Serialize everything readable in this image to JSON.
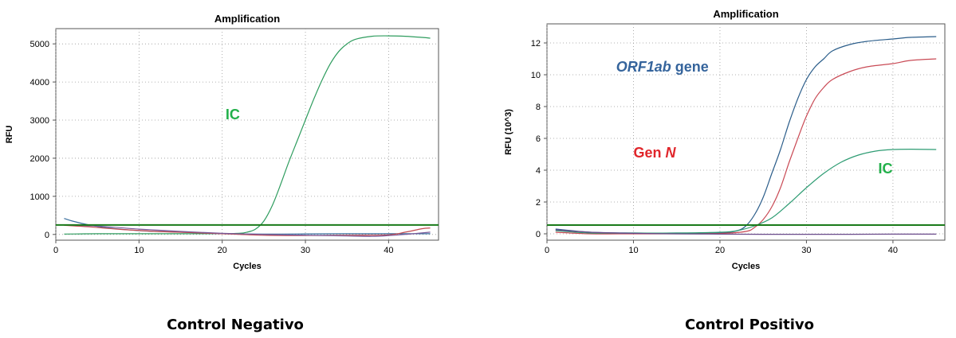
{
  "chart_data": [
    {
      "type": "line",
      "title": "Amplification",
      "xlabel": "Cycles",
      "ylabel": "RFU",
      "xlim": [
        0,
        46
      ],
      "ylim": [
        -150,
        5400
      ],
      "xticks": [
        0,
        10,
        20,
        30,
        40
      ],
      "yticks": [
        0,
        1000,
        2000,
        3000,
        4000,
        5000
      ],
      "threshold": 250,
      "threshold_color": "#1a7a1a",
      "series": [
        {
          "color": "#2e9c5e",
          "x": [
            1,
            3,
            5,
            10,
            15,
            20,
            22,
            23,
            24,
            25,
            26,
            27,
            28,
            29,
            30,
            31,
            32,
            33,
            34,
            35,
            36,
            38,
            40,
            42,
            44,
            45
          ],
          "y": [
            10,
            15,
            20,
            20,
            20,
            20,
            30,
            60,
            140,
            350,
            750,
            1300,
            1900,
            2450,
            3000,
            3550,
            4050,
            4480,
            4800,
            5000,
            5120,
            5200,
            5210,
            5200,
            5170,
            5150
          ]
        },
        {
          "color": "#3a6f9e",
          "x": [
            1,
            2,
            4,
            6,
            10,
            15,
            20,
            25,
            30,
            35,
            40,
            45
          ],
          "y": [
            420,
            350,
            250,
            180,
            100,
            60,
            20,
            10,
            15,
            20,
            20,
            20
          ]
        },
        {
          "color": "#c2474e",
          "x": [
            1,
            4,
            8,
            12,
            16,
            20,
            25,
            30,
            35,
            40,
            42,
            44,
            45
          ],
          "y": [
            240,
            200,
            130,
            80,
            50,
            20,
            -20,
            -30,
            -20,
            -10,
            60,
            150,
            170
          ]
        },
        {
          "color": "#7a5a9a",
          "x": [
            1,
            5,
            10,
            15,
            20,
            25,
            30,
            35,
            38,
            40,
            43,
            45
          ],
          "y": [
            250,
            220,
            140,
            80,
            30,
            0,
            -20,
            -40,
            -50,
            -30,
            20,
            60
          ]
        }
      ],
      "annotations": [
        {
          "text": "IC",
          "x": 20.4,
          "y": 3020,
          "color": "#22b04a"
        }
      ]
    },
    {
      "type": "line",
      "title": "Amplification",
      "xlabel": "Cycles",
      "ylabel": "RFU (10^3)",
      "xlim": [
        0,
        46
      ],
      "ylim": [
        -0.4,
        13.2
      ],
      "xticks": [
        0,
        10,
        20,
        30,
        40
      ],
      "yticks": [
        0,
        2,
        4,
        6,
        8,
        10,
        12
      ],
      "threshold": 0.55,
      "threshold_color": "#1a7a1a",
      "series": [
        {
          "color": "#2b5d8a",
          "x": [
            1,
            5,
            10,
            15,
            20,
            22,
            23,
            24,
            25,
            26,
            27,
            28,
            29,
            30,
            31,
            32,
            33,
            35,
            37,
            40,
            42,
            45
          ],
          "y": [
            0.3,
            0.1,
            0.05,
            0.05,
            0.05,
            0.2,
            0.5,
            1.2,
            2.3,
            3.8,
            5.3,
            7.0,
            8.5,
            9.7,
            10.5,
            11.0,
            11.5,
            11.9,
            12.1,
            12.25,
            12.35,
            12.4
          ]
        },
        {
          "color": "#c94a55",
          "x": [
            1,
            5,
            10,
            15,
            20,
            23,
            24,
            25,
            26,
            27,
            28,
            29,
            30,
            31,
            32,
            33,
            35,
            37,
            40,
            42,
            45
          ],
          "y": [
            0.1,
            0.0,
            0.0,
            0.0,
            0.02,
            0.15,
            0.4,
            0.9,
            1.7,
            2.9,
            4.5,
            6.0,
            7.4,
            8.5,
            9.2,
            9.7,
            10.2,
            10.5,
            10.7,
            10.9,
            11.0
          ]
        },
        {
          "color": "#2e9c73",
          "x": [
            1,
            5,
            10,
            15,
            20,
            22,
            24,
            26,
            28,
            30,
            32,
            34,
            36,
            38,
            40,
            42,
            45
          ],
          "y": [
            0.2,
            0.05,
            0.05,
            0.05,
            0.1,
            0.2,
            0.5,
            1.0,
            1.9,
            2.9,
            3.8,
            4.5,
            4.95,
            5.2,
            5.3,
            5.32,
            5.3
          ]
        },
        {
          "color": "#6a4a8a",
          "x": [
            1,
            5,
            10,
            15,
            20,
            25,
            30,
            35,
            40,
            45
          ],
          "y": [
            0.25,
            0.1,
            0.03,
            0.0,
            -0.02,
            -0.03,
            -0.03,
            -0.03,
            -0.02,
            -0.02
          ]
        }
      ],
      "annotations": [
        {
          "text": "ORF1ab",
          "suffix": "gene",
          "x": 8.0,
          "y": 10.2,
          "color": "#35649c",
          "italic_part": true
        },
        {
          "text": "Gen",
          "suffix": "N",
          "x": 10.0,
          "y": 4.8,
          "color": "#e0262b",
          "italic_suffix": true
        },
        {
          "text": "IC",
          "x": 38.3,
          "y": 3.8,
          "color": "#22b04a"
        }
      ]
    }
  ],
  "captions": {
    "left": "Control Negativo",
    "right": "Control Positivo"
  }
}
